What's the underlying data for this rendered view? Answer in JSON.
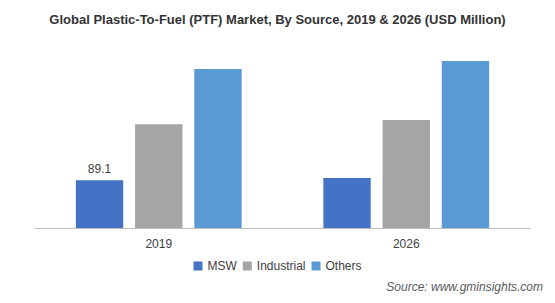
{
  "chart_data": {
    "type": "bar",
    "title": "Global Plastic-To-Fuel (PTF) Market, By Source, 2019 & 2026 (USD Million)",
    "categories": [
      "2019",
      "2026"
    ],
    "series": [
      {
        "name": "MSW",
        "color": "#4472c4",
        "values": [
          89.1,
          93
        ],
        "value_labels": [
          "89.1",
          null
        ]
      },
      {
        "name": "Industrial",
        "color": "#a5a5a5",
        "values": [
          193,
          201
        ]
      },
      {
        "name": "Others",
        "color": "#5b9bd5",
        "values": [
          296,
          311
        ]
      }
    ],
    "ylim": [
      0,
      350
    ],
    "yticks": [
      0,
      350
    ],
    "grid": false,
    "tick_labels": "x",
    "legend": "bottom",
    "annotations": [
      "Source: www.gminsights.com"
    ]
  }
}
